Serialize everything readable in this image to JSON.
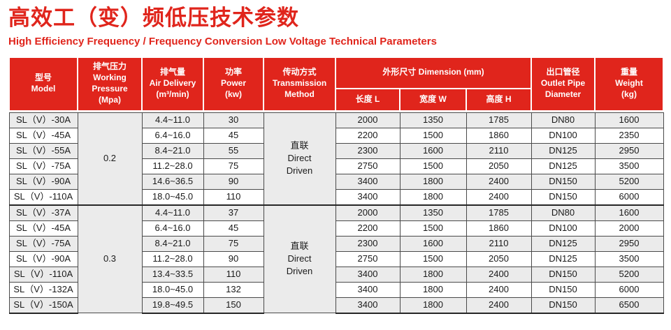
{
  "page": {
    "title": "高效工（变）频低压技术参数",
    "subtitle": "High Efficiency Frequency / Frequency Conversion Low Voltage Technical Parameters"
  },
  "colors": {
    "accent_red": "#e0251c",
    "stripe_gray": "#ebebeb",
    "grid_line": "#4a4a4a",
    "body_text": "#1a1a1a",
    "header_text": "#ffffff"
  },
  "table": {
    "head": {
      "model": [
        "型号",
        "Model"
      ],
      "pressure": [
        "排气压力",
        "Working",
        "Pressure",
        "(Mpa)"
      ],
      "air_delivery": [
        "排气量",
        "Air Delivery",
        "(m³/min)"
      ],
      "power": [
        "功率",
        "Power",
        "(kw)"
      ],
      "transmission": [
        "传动方式",
        "Transmission",
        "Method"
      ],
      "dimension": "外形尺寸 Dimension (mm)",
      "length": "长度 L",
      "width": "宽度 W",
      "height": "高度 H",
      "outlet": [
        "出口管径",
        "Outlet Pipe",
        "Diameter"
      ],
      "weight": [
        "重量",
        "Weight",
        "(kg)"
      ]
    },
    "groups": [
      {
        "pressure": "0.2",
        "transmission": [
          "直联",
          "Direct",
          "Driven"
        ],
        "rows": [
          {
            "model": "SL（V）-30A",
            "air": "4.4~11.0",
            "power": "30",
            "length": "2000",
            "width": "1350",
            "height": "1785",
            "outlet": "DN80",
            "weight": "1600"
          },
          {
            "model": "SL（V）-45A",
            "air": "6.4~16.0",
            "power": "45",
            "length": "2200",
            "width": "1500",
            "height": "1860",
            "outlet": "DN100",
            "weight": "2350"
          },
          {
            "model": "SL（V）-55A",
            "air": "8.4~21.0",
            "power": "55",
            "length": "2300",
            "width": "1600",
            "height": "2110",
            "outlet": "DN125",
            "weight": "2950"
          },
          {
            "model": "SL（V）-75A",
            "air": "11.2~28.0",
            "power": "75",
            "length": "2750",
            "width": "1500",
            "height": "2050",
            "outlet": "DN125",
            "weight": "3500"
          },
          {
            "model": "SL（V）-90A",
            "air": "14.6~36.5",
            "power": "90",
            "length": "3400",
            "width": "1800",
            "height": "2400",
            "outlet": "DN150",
            "weight": "5200"
          },
          {
            "model": "SL（V）-110A",
            "air": "18.0~45.0",
            "power": "110",
            "length": "3400",
            "width": "1800",
            "height": "2400",
            "outlet": "DN150",
            "weight": "6000"
          }
        ]
      },
      {
        "pressure": "0.3",
        "transmission": [
          "直联",
          "Direct",
          "Driven"
        ],
        "rows": [
          {
            "model": "SL（V）-37A",
            "air": "4.4~11.0",
            "power": "37",
            "length": "2000",
            "width": "1350",
            "height": "1785",
            "outlet": "DN80",
            "weight": "1600"
          },
          {
            "model": "SL（V）-45A",
            "air": "6.4~16.0",
            "power": "45",
            "length": "2200",
            "width": "1500",
            "height": "1860",
            "outlet": "DN100",
            "weight": "2000"
          },
          {
            "model": "SL（V）-75A",
            "air": "8.4~21.0",
            "power": "75",
            "length": "2300",
            "width": "1600",
            "height": "2110",
            "outlet": "DN125",
            "weight": "2950"
          },
          {
            "model": "SL（V）-90A",
            "air": "11.2~28.0",
            "power": "90",
            "length": "2750",
            "width": "1500",
            "height": "2050",
            "outlet": "DN125",
            "weight": "3500"
          },
          {
            "model": "SL（V）-110A",
            "air": "13.4~33.5",
            "power": "110",
            "length": "3400",
            "width": "1800",
            "height": "2400",
            "outlet": "DN150",
            "weight": "5200"
          },
          {
            "model": "SL（V）-132A",
            "air": "18.0~45.0",
            "power": "132",
            "length": "3400",
            "width": "1800",
            "height": "2400",
            "outlet": "DN150",
            "weight": "6000"
          },
          {
            "model": "SL（V）-150A",
            "air": "19.8~49.5",
            "power": "150",
            "length": "3400",
            "width": "1800",
            "height": "2400",
            "outlet": "DN150",
            "weight": "6500"
          }
        ]
      }
    ]
  }
}
